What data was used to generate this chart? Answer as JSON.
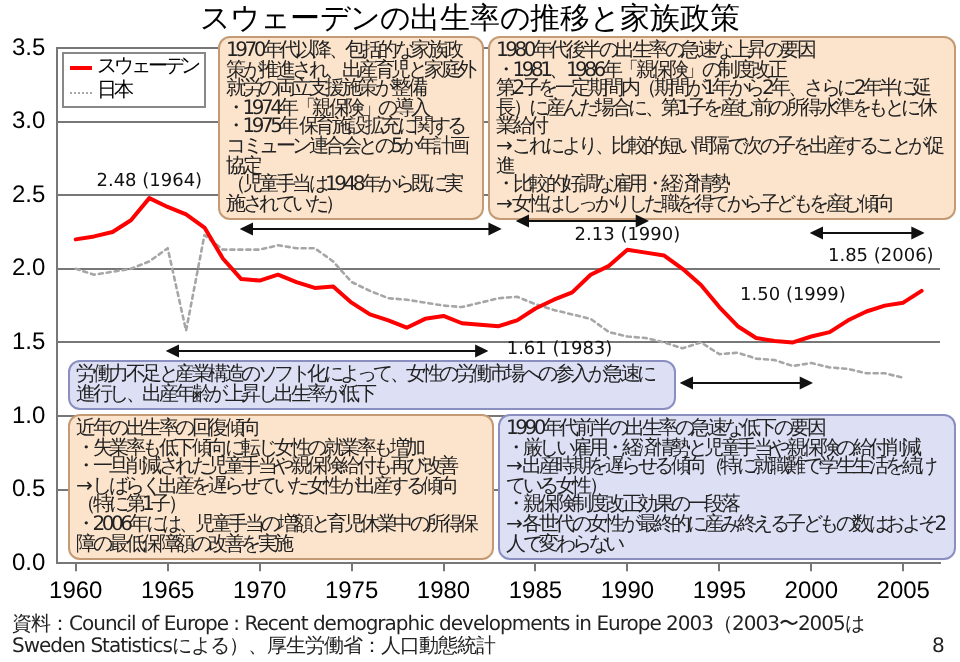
{
  "chart_data": {
    "type": "line",
    "title": "スウェーデンの出生率の推移と家族政策",
    "x": [
      1960,
      1961,
      1962,
      1963,
      1964,
      1965,
      1966,
      1967,
      1968,
      1969,
      1970,
      1971,
      1972,
      1973,
      1974,
      1975,
      1976,
      1977,
      1978,
      1979,
      1980,
      1981,
      1982,
      1983,
      1984,
      1985,
      1986,
      1987,
      1988,
      1989,
      1990,
      1991,
      1992,
      1993,
      1994,
      1995,
      1996,
      1997,
      1998,
      1999,
      2000,
      2001,
      2002,
      2003,
      2004,
      2005,
      2006
    ],
    "series": [
      {
        "name": "スウェーデン",
        "color": "#ff0000",
        "line_style": "solid",
        "values": [
          2.2,
          2.22,
          2.25,
          2.33,
          2.48,
          2.42,
          2.37,
          2.28,
          2.07,
          1.93,
          1.92,
          1.96,
          1.91,
          1.87,
          1.88,
          1.77,
          1.69,
          1.65,
          1.6,
          1.66,
          1.68,
          1.63,
          1.62,
          1.61,
          1.65,
          1.73,
          1.79,
          1.84,
          1.96,
          2.02,
          2.13,
          2.11,
          2.09,
          2.0,
          1.89,
          1.74,
          1.61,
          1.53,
          1.51,
          1.5,
          1.54,
          1.57,
          1.65,
          1.71,
          1.75,
          1.77,
          1.85
        ]
      },
      {
        "name": "日本",
        "color": "#a6a6a6",
        "line_style": "dotted",
        "values": [
          2.0,
          1.96,
          1.98,
          2.0,
          2.05,
          2.14,
          1.58,
          2.23,
          2.13,
          2.13,
          2.13,
          2.16,
          2.14,
          2.14,
          2.05,
          1.91,
          1.85,
          1.8,
          1.79,
          1.77,
          1.75,
          1.74,
          1.77,
          1.8,
          1.81,
          1.76,
          1.72,
          1.69,
          1.66,
          1.57,
          1.54,
          1.53,
          1.5,
          1.46,
          1.5,
          1.42,
          1.43,
          1.39,
          1.38,
          1.34,
          1.36,
          1.33,
          1.32,
          1.29,
          1.29,
          1.26,
          null
        ]
      }
    ],
    "xlim": [
      1959,
      2007
    ],
    "xticks": [
      1960,
      1965,
      1970,
      1975,
      1980,
      1985,
      1990,
      1995,
      2000,
      2005
    ],
    "ylim": [
      0,
      3.5
    ],
    "yticks": [
      {
        "value": 0,
        "label": "0.0"
      },
      {
        "value": 0.5,
        "label": "0.5"
      },
      {
        "value": 1,
        "label": "1.0"
      },
      {
        "value": 1.5,
        "label": "1.5"
      },
      {
        "value": 2,
        "label": "2.0"
      },
      {
        "value": 2.5,
        "label": "2.5"
      },
      {
        "value": 3,
        "label": "3.0"
      },
      {
        "value": 3.5,
        "label": "3.5"
      }
    ],
    "grid": "y",
    "legend": "top left",
    "marker": "none",
    "annotations": [
      {
        "text": "2.48 (1964)",
        "x": 1964,
        "y": 2.48
      },
      {
        "text": "2.13 (1990)",
        "x": 1990,
        "y": 2.13
      },
      {
        "text": "1.61 (1983)",
        "x": 1983,
        "y": 1.61
      },
      {
        "text": "1.50 (1999)",
        "x": 1999,
        "y": 1.5
      },
      {
        "text": "1.85 (2006)",
        "x": 2006,
        "y": 1.85
      },
      "1970年代以降、包括的な家族政策が推進され、出産育児と家庭外就労の両立支援施策が整備",
      "・1974年「親保険」の導入",
      "・1975年 保育施設拡充に関するコミューン連合会との5か年計画協定",
      "（児童手当は1948年から既に実施されていた）",
      "1980年代後半の出生率の急速な上昇の要因",
      "・1981、1986年「親保険」の制度改正",
      "第2子を一定期間内（期間が1年から2年、さらに2年半に延長）に産んだ場合に、第1子を産む前の所得水準をもとに休業給付",
      "→ これにより、比較的短い間隔で次の子を出産することが促進",
      "・比較的好調な雇用・経済情勢",
      "→ 女性はしっかりした職を得てから子どもを産む傾向",
      "近年の出生率の回復傾向",
      "・失業率も低下傾向に転じ女性の就業率も増加",
      "・一旦削減された児童手当や親保険給付も再び改善",
      "→ しばらく出産を遅らせていた女性が出産する傾向（特に第1子）",
      "・2006年には、児童手当の増額と育児休業中の所得保障の最低保障額の改善を実施",
      "労働力不足と産業構造のソフト化によって、女性の労働市場への参入が急速に進行し、出産年齢が上昇し出生率が低下",
      "1990年代前半の出生率の急速な低下の要因",
      "・厳しい雇用・経済情勢と児童手当や親保険の給付削減",
      "→ 出産時期を遅らせる傾向（特に就職難で学生生活を続けている女性）",
      "・親保険制度改正効果の一段落",
      "→ 各世代の女性が最終的に産み終える子どもの数はおよそ2人で変わらない",
      "資料：Council of Europe : Recent demographic developments in Europe 2003（2003〜2005はSweden Statisticsによる）、厚生労働省：人口動態統計",
      "8"
    ]
  }
}
